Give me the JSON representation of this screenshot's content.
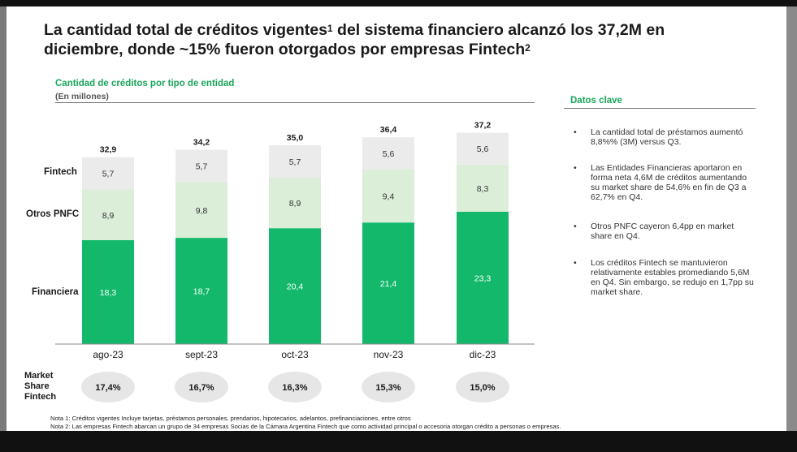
{
  "title_line1": "La cantidad total de créditos vigentes",
  "title_sup1": "1",
  "title_line1b": " del sistema financiero alcanzó los 37,2M en",
  "title_line2": "diciembre, donde ~15% fueron otorgados por empresas Fintech",
  "title_sup2": "2",
  "chart_data": {
    "type": "bar",
    "stacked": true,
    "title": "Cantidad de créditos por tipo de entidad",
    "subtitle": "(En millones)",
    "categories": [
      "ago-23",
      "sept-23",
      "oct-23",
      "nov-23",
      "dic-23"
    ],
    "series": [
      {
        "name": "Financiera",
        "values": [
          18.3,
          18.7,
          20.4,
          21.4,
          23.3
        ],
        "labels": [
          "18,3",
          "18,7",
          "20,4",
          "21,4",
          "23,3"
        ],
        "color": "#13b86b"
      },
      {
        "name": "Otros PNFC",
        "values": [
          8.9,
          9.8,
          8.9,
          9.4,
          8.3
        ],
        "labels": [
          "8,9",
          "9,8",
          "8,9",
          "9,4",
          "8,3"
        ],
        "color": "#daeed8"
      },
      {
        "name": "Fintech",
        "values": [
          5.7,
          5.7,
          5.7,
          5.6,
          5.6
        ],
        "labels": [
          "5,7",
          "5,7",
          "5,7",
          "5,6",
          "5,6"
        ],
        "color": "#ebebeb"
      }
    ],
    "totals": [
      "32,9",
      "34,2",
      "35,0",
      "36,4",
      "37,2"
    ],
    "total_values": [
      32.9,
      34.2,
      35.0,
      36.4,
      37.2
    ],
    "market_share_label_1": "Market",
    "market_share_label_2": "Share",
    "market_share_label_3": "Fintech",
    "market_share": [
      "17,4%",
      "16,7%",
      "16,3%",
      "15,3%",
      "15,0%"
    ],
    "legend": "left"
  },
  "row_labels": {
    "fintech": "Fintech",
    "pnfc": "Otros PNFC",
    "financiera": "Financiera"
  },
  "key_data": {
    "heading": "Datos clave",
    "bullets": [
      "La cantidad total de préstamos aumentó 8,8%% (3M) versus Q3.",
      "Las Entidades Financieras aportaron en forma neta 4,6M de créditos aumentando su market share de 54,6% en fin de Q3 a 62,7% en Q4.",
      "Otros PNFC cayeron 6,4pp en market share en Q4.",
      "Los créditos Fintech se mantuvieron relativamente estables promediando 5,6M en Q4. Sin embargo, se redujo en 1,7pp su market share."
    ],
    "bullet_char": "•"
  },
  "notes": [
    "Nota 1: Créditos vigentes Incluye tarjetas, préstamos personales, prendarios, hipotecarios, adelantos, prefinanciaciones, entre otros",
    "Nota 2: Las empresas Fintech abarcan un grupo de 34 empresas Socias de la Cámara Argentina Fintech que como actividad principal o accesoria otorgan crédito a personas o empresas."
  ]
}
